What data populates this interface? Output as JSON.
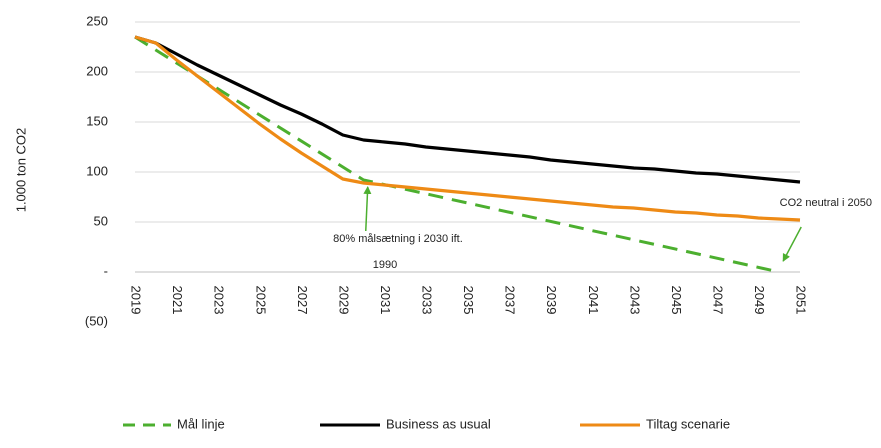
{
  "chart_data": {
    "type": "line",
    "ylabel": "1.000 ton CO2",
    "ylim": [
      -50,
      250
    ],
    "y_ticks": [
      {
        "value": 250,
        "label": "250"
      },
      {
        "value": 200,
        "label": "200"
      },
      {
        "value": 150,
        "label": "150"
      },
      {
        "value": 100,
        "label": "100"
      },
      {
        "value": 50,
        "label": "50"
      },
      {
        "value": 0,
        "label": "-"
      },
      {
        "value": -50,
        "label": "(50)"
      }
    ],
    "x_ticks": [
      "2019",
      "2021",
      "2023",
      "2025",
      "2027",
      "2029",
      "2031",
      "2033",
      "2035",
      "2037",
      "2039",
      "2041",
      "2043",
      "2045",
      "2047",
      "2049",
      "2051"
    ],
    "grid": "horizontal",
    "legend_position": "bottom",
    "series": [
      {
        "name": "Mål linje",
        "color": "#4caf2f",
        "style": "dashed",
        "x": [
          2019,
          2030,
          2050
        ],
        "values": [
          235,
          92,
          0
        ]
      },
      {
        "name": "Business as usual",
        "color": "#000000",
        "style": "solid",
        "x": [
          2019,
          2020,
          2021,
          2022,
          2023,
          2024,
          2025,
          2026,
          2027,
          2028,
          2029,
          2030,
          2031,
          2032,
          2033,
          2034,
          2035,
          2036,
          2037,
          2038,
          2039,
          2040,
          2041,
          2042,
          2043,
          2044,
          2045,
          2046,
          2047,
          2048,
          2049,
          2050,
          2051
        ],
        "values": [
          235,
          229,
          218,
          207,
          197,
          187,
          177,
          167,
          158,
          148,
          137,
          132,
          130,
          128,
          125,
          123,
          121,
          119,
          117,
          115,
          112,
          110,
          108,
          106,
          104,
          103,
          101,
          99,
          98,
          96,
          94,
          92,
          90
        ]
      },
      {
        "name": "Tiltag scenarie",
        "color": "#ee8a15",
        "style": "solid",
        "x": [
          2019,
          2020,
          2021,
          2022,
          2023,
          2024,
          2025,
          2026,
          2027,
          2028,
          2029,
          2030,
          2031,
          2032,
          2033,
          2034,
          2035,
          2036,
          2037,
          2038,
          2039,
          2040,
          2041,
          2042,
          2043,
          2044,
          2045,
          2046,
          2047,
          2048,
          2049,
          2050,
          2051
        ],
        "values": [
          235,
          229,
          212,
          196,
          180,
          164,
          148,
          133,
          119,
          106,
          93,
          89,
          87,
          85,
          83,
          81,
          79,
          77,
          75,
          73,
          71,
          69,
          67,
          65,
          64,
          62,
          60,
          59,
          57,
          56,
          54,
          53,
          52
        ]
      }
    ],
    "annotations": [
      {
        "text_lines": [
          "80% målsætning i 2030 ift.",
          "1990"
        ],
        "point_x": 2030.2,
        "point_y": 91
      },
      {
        "text_lines": [
          "CO2 neutral i 2050"
        ],
        "point_x": 2050,
        "point_y": 1
      }
    ]
  }
}
